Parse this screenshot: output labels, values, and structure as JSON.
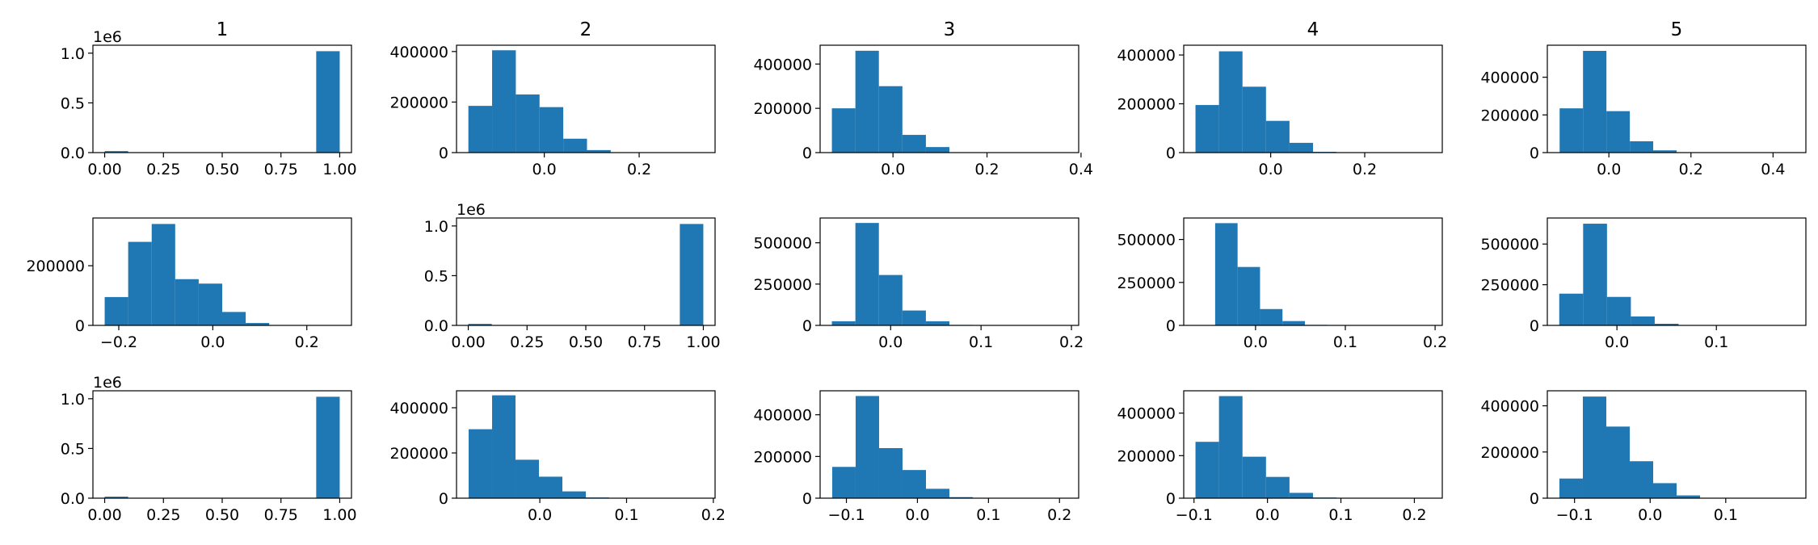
{
  "figure": {
    "bar_color": "#1f77b4",
    "column_titles": [
      "1",
      "2",
      "3",
      "4",
      "5"
    ]
  },
  "chart_data": [
    {
      "type": "bar",
      "row": 1,
      "col": 1,
      "title": "1",
      "offset_label": "1e6",
      "bin_edges": [
        0,
        0.1,
        0.2,
        0.3,
        0.4,
        0.5,
        0.6,
        0.7,
        0.8,
        0.9,
        1.0
      ],
      "counts": [
        15000,
        0,
        0,
        0,
        0,
        0,
        0,
        0,
        0,
        1020000
      ],
      "xlim": [
        -0.05,
        1.05
      ],
      "ylim": [
        0,
        1080000
      ],
      "xticks": [
        0,
        0.25,
        0.5,
        0.75,
        1.0
      ],
      "xtick_labels": [
        "0.00",
        "0.25",
        "0.50",
        "0.75",
        "1.00"
      ],
      "yticks": [
        0,
        500000,
        1000000
      ],
      "ytick_labels": [
        "0.0",
        "0.5",
        "1.0"
      ]
    },
    {
      "type": "bar",
      "row": 1,
      "col": 2,
      "title": "2",
      "bin_edges": [
        -0.16,
        -0.11,
        -0.06,
        -0.01,
        0.04,
        0.09,
        0.14,
        0.19,
        0.24,
        0.29,
        0.34
      ],
      "counts": [
        185000,
        405000,
        230000,
        180000,
        55000,
        10000,
        1000,
        200,
        0,
        0
      ],
      "xlim": [
        -0.185,
        0.36
      ],
      "ylim": [
        0,
        425000
      ],
      "xticks": [
        0.0,
        0.2
      ],
      "xtick_labels": [
        "0.0",
        "0.2"
      ],
      "yticks": [
        0,
        200000,
        400000
      ],
      "ytick_labels": [
        "0",
        "200000",
        "400000"
      ]
    },
    {
      "type": "bar",
      "row": 1,
      "col": 3,
      "title": "3",
      "bin_edges": [
        -0.13,
        -0.08,
        -0.03,
        0.02,
        0.07,
        0.12,
        0.17,
        0.22,
        0.27,
        0.32,
        0.37
      ],
      "counts": [
        200000,
        460000,
        300000,
        80000,
        25000,
        1000,
        0,
        0,
        0,
        0
      ],
      "xlim": [
        -0.155,
        0.395
      ],
      "ylim": [
        0,
        485000
      ],
      "xticks": [
        0.0,
        0.2,
        0.4
      ],
      "xtick_labels": [
        "0.0",
        "0.2",
        "0.4"
      ],
      "yticks": [
        0,
        200000,
        400000
      ],
      "ytick_labels": [
        "0",
        "200000",
        "400000"
      ]
    },
    {
      "type": "bar",
      "row": 1,
      "col": 4,
      "title": "4",
      "bin_edges": [
        -0.16,
        -0.11,
        -0.06,
        -0.01,
        0.04,
        0.09,
        0.14,
        0.19,
        0.24,
        0.29,
        0.34
      ],
      "counts": [
        195000,
        415000,
        270000,
        130000,
        40000,
        3000,
        500,
        0,
        0,
        0
      ],
      "xlim": [
        -0.185,
        0.365
      ],
      "ylim": [
        0,
        440000
      ],
      "xticks": [
        0.0,
        0.2
      ],
      "xtick_labels": [
        "0.0",
        "0.2"
      ],
      "yticks": [
        0,
        200000,
        400000
      ],
      "ytick_labels": [
        "0",
        "200000",
        "400000"
      ]
    },
    {
      "type": "bar",
      "row": 1,
      "col": 5,
      "title": "5",
      "bin_edges": [
        -0.12,
        -0.063,
        -0.006,
        0.051,
        0.108,
        0.165,
        0.222,
        0.279,
        0.336,
        0.393,
        0.45
      ],
      "counts": [
        235000,
        540000,
        220000,
        60000,
        12000,
        1000,
        0,
        0,
        0,
        0
      ],
      "xlim": [
        -0.15,
        0.48
      ],
      "ylim": [
        0,
        570000
      ],
      "xticks": [
        0.0,
        0.2,
        0.4
      ],
      "xtick_labels": [
        "0.0",
        "0.2",
        "0.4"
      ],
      "yticks": [
        0,
        200000,
        400000
      ],
      "ytick_labels": [
        "0",
        "200000",
        "400000"
      ]
    },
    {
      "type": "bar",
      "row": 2,
      "col": 1,
      "bin_edges": [
        -0.23,
        -0.18,
        -0.13,
        -0.08,
        -0.03,
        0.02,
        0.07,
        0.12,
        0.17,
        0.22,
        0.27
      ],
      "counts": [
        95000,
        280000,
        340000,
        155000,
        140000,
        45000,
        8000,
        1000,
        0,
        0
      ],
      "xlim": [
        -0.255,
        0.295
      ],
      "ylim": [
        0,
        360000
      ],
      "xticks": [
        -0.2,
        0.0,
        0.2
      ],
      "xtick_labels": [
        "−0.2",
        "0.0",
        "0.2"
      ],
      "yticks": [
        0,
        200000
      ],
      "ytick_labels": [
        "0",
        "200000"
      ]
    },
    {
      "type": "bar",
      "row": 2,
      "col": 2,
      "offset_label": "1e6",
      "bin_edges": [
        0,
        0.1,
        0.2,
        0.3,
        0.4,
        0.5,
        0.6,
        0.7,
        0.8,
        0.9,
        1.0
      ],
      "counts": [
        15000,
        0,
        0,
        0,
        0,
        0,
        0,
        0,
        0,
        1020000
      ],
      "xlim": [
        -0.05,
        1.05
      ],
      "ylim": [
        0,
        1080000
      ],
      "xticks": [
        0,
        0.25,
        0.5,
        0.75,
        1.0
      ],
      "xtick_labels": [
        "0.00",
        "0.25",
        "0.50",
        "0.75",
        "1.00"
      ],
      "yticks": [
        0,
        500000,
        1000000
      ],
      "ytick_labels": [
        "0.0",
        "0.5",
        "1.0"
      ]
    },
    {
      "type": "bar",
      "row": 2,
      "col": 3,
      "bin_edges": [
        -0.065,
        -0.039,
        -0.013,
        0.013,
        0.039,
        0.065,
        0.091,
        0.117,
        0.143,
        0.169,
        0.195
      ],
      "counts": [
        25000,
        620000,
        305000,
        90000,
        25000,
        3000,
        0,
        0,
        0,
        0
      ],
      "xlim": [
        -0.078,
        0.208
      ],
      "ylim": [
        0,
        650000
      ],
      "xticks": [
        0.0,
        0.1,
        0.2
      ],
      "xtick_labels": [
        "0.0",
        "0.1",
        "0.2"
      ],
      "yticks": [
        0,
        250000,
        500000
      ],
      "ytick_labels": [
        "0",
        "250000",
        "500000"
      ]
    },
    {
      "type": "bar",
      "row": 2,
      "col": 4,
      "bin_edges": [
        -0.045,
        -0.02,
        0.005,
        0.03,
        0.055,
        0.08,
        0.105,
        0.13,
        0.155,
        0.18,
        0.205
      ],
      "counts": [
        595000,
        340000,
        95000,
        25000,
        3000,
        0,
        0,
        0,
        0,
        0
      ],
      "xlim": [
        -0.08,
        0.208
      ],
      "ylim": [
        0,
        625000
      ],
      "xticks": [
        0.0,
        0.1,
        0.2
      ],
      "xtick_labels": [
        "0.0",
        "0.1",
        "0.2"
      ],
      "yticks": [
        0,
        250000,
        500000
      ],
      "ytick_labels": [
        "0",
        "250000",
        "500000"
      ]
    },
    {
      "type": "bar",
      "row": 2,
      "col": 5,
      "bin_edges": [
        -0.058,
        -0.034,
        -0.01,
        0.014,
        0.038,
        0.062,
        0.086,
        0.11,
        0.134,
        0.158,
        0.182
      ],
      "counts": [
        195000,
        625000,
        175000,
        55000,
        10000,
        1000,
        0,
        0,
        0,
        0
      ],
      "xlim": [
        -0.07,
        0.19
      ],
      "ylim": [
        0,
        660000
      ],
      "xticks": [
        0.0,
        0.1
      ],
      "xtick_labels": [
        "0.0",
        "0.1"
      ],
      "yticks": [
        0,
        250000,
        500000
      ],
      "ytick_labels": [
        "0",
        "250000",
        "500000"
      ]
    },
    {
      "type": "bar",
      "row": 3,
      "col": 1,
      "offset_label": "1e6",
      "bin_edges": [
        0,
        0.1,
        0.2,
        0.3,
        0.4,
        0.5,
        0.6,
        0.7,
        0.8,
        0.9,
        1.0
      ],
      "counts": [
        15000,
        0,
        0,
        0,
        0,
        0,
        0,
        0,
        0,
        1020000
      ],
      "xlim": [
        -0.05,
        1.05
      ],
      "ylim": [
        0,
        1080000
      ],
      "xticks": [
        0,
        0.25,
        0.5,
        0.75,
        1.0
      ],
      "xtick_labels": [
        "0.00",
        "0.25",
        "0.50",
        "0.75",
        "1.00"
      ],
      "yticks": [
        0,
        500000,
        1000000
      ],
      "ytick_labels": [
        "0.0",
        "0.5",
        "1.0"
      ]
    },
    {
      "type": "bar",
      "row": 3,
      "col": 2,
      "bin_edges": [
        -0.082,
        -0.055,
        -0.028,
        -0.001,
        0.026,
        0.053,
        0.08,
        0.107,
        0.134,
        0.161,
        0.188
      ],
      "counts": [
        305000,
        455000,
        170000,
        95000,
        30000,
        3000,
        500,
        0,
        0,
        0
      ],
      "xlim": [
        -0.096,
        0.202
      ],
      "ylim": [
        0,
        475000
      ],
      "xticks": [
        0.0,
        0.1,
        0.2
      ],
      "xtick_labels": [
        "0.0",
        "0.1",
        "0.2"
      ],
      "yticks": [
        0,
        200000,
        400000
      ],
      "ytick_labels": [
        "0",
        "200000",
        "400000"
      ]
    },
    {
      "type": "bar",
      "row": 3,
      "col": 3,
      "bin_edges": [
        -0.12,
        -0.087,
        -0.054,
        -0.021,
        0.012,
        0.045,
        0.078,
        0.111,
        0.144,
        0.177,
        0.21
      ],
      "counts": [
        150000,
        490000,
        240000,
        135000,
        45000,
        5000,
        500,
        0,
        0,
        0
      ],
      "xlim": [
        -0.137,
        0.227
      ],
      "ylim": [
        0,
        515000
      ],
      "xticks": [
        -0.1,
        0.0,
        0.1,
        0.2
      ],
      "xtick_labels": [
        "−0.1",
        "0.0",
        "0.1",
        "0.2"
      ],
      "yticks": [
        0,
        200000,
        400000
      ],
      "ytick_labels": [
        "0",
        "200000",
        "400000"
      ]
    },
    {
      "type": "bar",
      "row": 3,
      "col": 4,
      "bin_edges": [
        -0.098,
        -0.066,
        -0.034,
        -0.002,
        0.03,
        0.062,
        0.094,
        0.126,
        0.158,
        0.19,
        0.222
      ],
      "counts": [
        265000,
        480000,
        195000,
        100000,
        25000,
        3000,
        500,
        0,
        0,
        0
      ],
      "xlim": [
        -0.114,
        0.238
      ],
      "ylim": [
        0,
        505000
      ],
      "xticks": [
        -0.1,
        0.0,
        0.1,
        0.2
      ],
      "xtick_labels": [
        "−0.1",
        "0.0",
        "0.1",
        "0.2"
      ],
      "yticks": [
        0,
        200000,
        400000
      ],
      "ytick_labels": [
        "0",
        "200000",
        "400000"
      ]
    },
    {
      "type": "bar",
      "row": 3,
      "col": 5,
      "bin_edges": [
        -0.12,
        -0.089,
        -0.058,
        -0.027,
        0.004,
        0.035,
        0.066,
        0.097,
        0.128,
        0.159,
        0.19
      ],
      "counts": [
        85000,
        440000,
        310000,
        160000,
        65000,
        12000,
        1000,
        0,
        0,
        0
      ],
      "xlim": [
        -0.136,
        0.206
      ],
      "ylim": [
        0,
        465000
      ],
      "xticks": [
        -0.1,
        0.0,
        0.1
      ],
      "xtick_labels": [
        "−0.1",
        "0.0",
        "0.1"
      ],
      "yticks": [
        0,
        200000,
        400000
      ],
      "ytick_labels": [
        "0",
        "200000",
        "400000"
      ]
    }
  ]
}
